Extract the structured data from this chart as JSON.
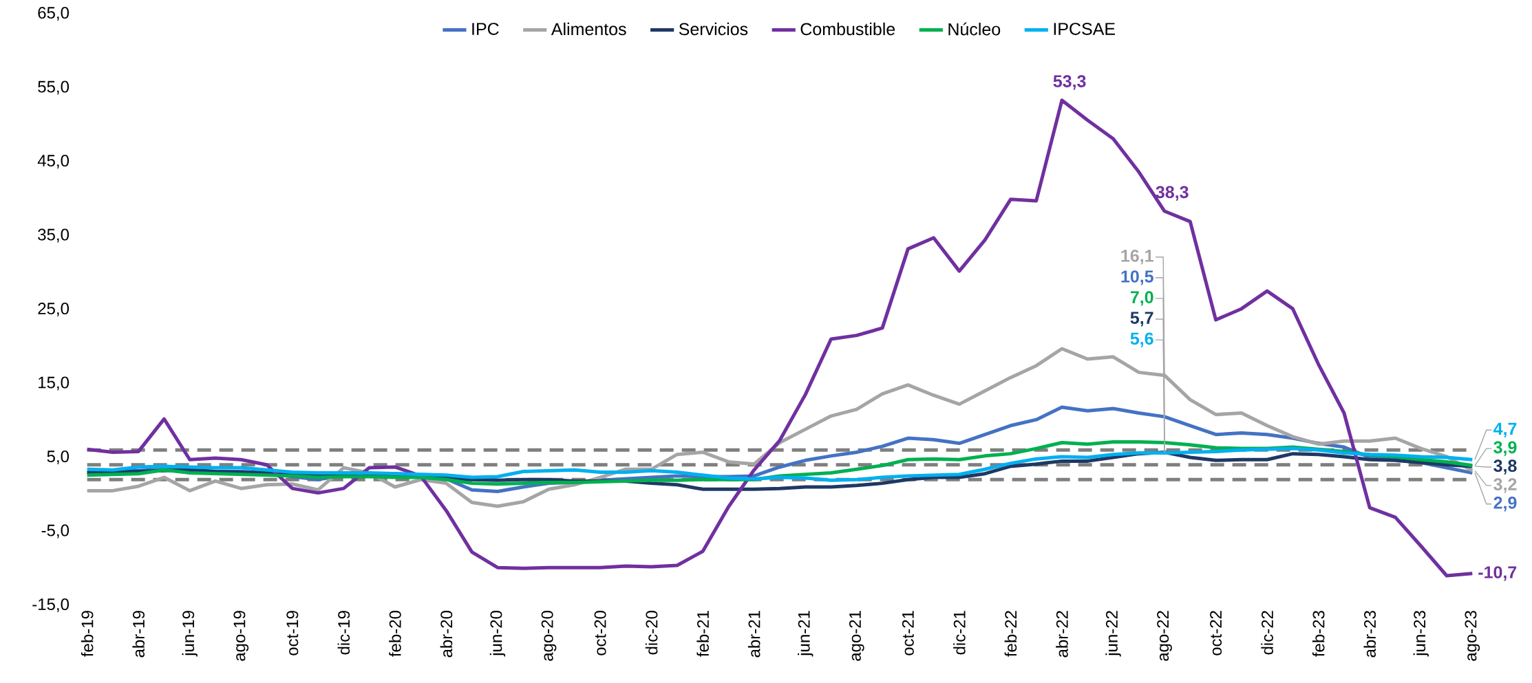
{
  "chart_data": {
    "type": "line",
    "categories": [
      "feb-19",
      null,
      "abr-19",
      null,
      "jun-19",
      null,
      "ago-19",
      null,
      "oct-19",
      null,
      "dic-19",
      null,
      "feb-20",
      null,
      "abr-20",
      null,
      "jun-20",
      null,
      "ago-20",
      null,
      "oct-20",
      null,
      "dic-20",
      null,
      "feb-21",
      null,
      "abr-21",
      null,
      "jun-21",
      null,
      "ago-21",
      null,
      "oct-21",
      null,
      "dic-21",
      null,
      "feb-22",
      null,
      "abr-22",
      null,
      "jun-22",
      null,
      "ago-22",
      null,
      "oct-22",
      null,
      "dic-22",
      null,
      "feb-23",
      null,
      "abr-23",
      null,
      "jun-23",
      null,
      "ago-23"
    ],
    "ylim": [
      -15,
      65
    ],
    "yticks": [
      {
        "value": -15,
        "label": "-15,0"
      },
      {
        "value": -5,
        "label": "-5,0"
      },
      {
        "value": 5,
        "label": "5,0"
      },
      {
        "value": 15,
        "label": "15,0"
      },
      {
        "value": 25,
        "label": "25,0"
      },
      {
        "value": 35,
        "label": "35,0"
      },
      {
        "value": 45,
        "label": "45,0"
      },
      {
        "value": 55,
        "label": "55,0"
      },
      {
        "value": 65,
        "label": "65,0"
      }
    ],
    "legend": "top",
    "ref_lines": [
      {
        "axis": "y",
        "value": 2,
        "color": "#7f7f7f",
        "line_style": "dashed"
      },
      {
        "axis": "y",
        "value": 4,
        "color": "#7f7f7f",
        "line_style": "dashed"
      },
      {
        "axis": "y",
        "value": 6,
        "color": "#7f7f7f",
        "line_style": "dashed"
      }
    ],
    "series": [
      {
        "name": "IPC",
        "color": "#4472c4",
        "values": [
          3.0,
          3.1,
          3.2,
          3.4,
          3.3,
          3.1,
          3.1,
          2.9,
          2.4,
          2.0,
          2.6,
          2.8,
          2.8,
          2.6,
          2.1,
          0.6,
          0.4,
          1.0,
          1.5,
          1.6,
          1.9,
          2.1,
          2.3,
          2.5,
          2.4,
          2.4,
          2.5,
          3.7,
          4.6,
          5.2,
          5.7,
          6.5,
          7.6,
          7.4,
          6.9,
          8.1,
          9.3,
          10.1,
          11.8,
          11.3,
          11.6,
          11.0,
          10.5,
          9.3,
          8.1,
          8.3,
          8.1,
          7.6,
          6.9,
          6.4,
          5.0,
          4.7,
          4.3,
          3.6,
          2.9
        ],
        "value_labels": [
          null,
          null,
          null,
          null,
          null,
          null,
          null,
          null,
          null,
          null,
          null,
          null,
          null,
          null,
          null,
          null,
          null,
          null,
          null,
          null,
          null,
          null,
          null,
          null,
          null,
          null,
          null,
          null,
          null,
          null,
          null,
          null,
          null,
          null,
          null,
          null,
          null,
          null,
          null,
          null,
          null,
          null,
          "10,5",
          null,
          null,
          null,
          null,
          null,
          null,
          null,
          null,
          null,
          null,
          null,
          "2,9"
        ]
      },
      {
        "name": "Alimentos",
        "color": "#a5a5a5",
        "values": [
          0.5,
          0.5,
          1.1,
          2.3,
          0.5,
          1.8,
          0.8,
          1.3,
          1.4,
          0.6,
          3.6,
          2.9,
          1.0,
          2.0,
          1.5,
          -1.1,
          -1.6,
          -1.0,
          0.7,
          1.3,
          2.3,
          3.4,
          3.4,
          5.4,
          5.7,
          4.4,
          4.1,
          7.0,
          8.8,
          10.6,
          11.5,
          13.6,
          14.8,
          13.4,
          12.2,
          14.0,
          15.8,
          17.4,
          19.7,
          18.3,
          18.6,
          16.5,
          16.1,
          12.8,
          10.8,
          11.0,
          9.3,
          7.8,
          6.8,
          7.2,
          7.2,
          7.6,
          6.2,
          5.1,
          3.2
        ],
        "value_labels": [
          null,
          null,
          null,
          null,
          null,
          null,
          null,
          null,
          null,
          null,
          null,
          null,
          null,
          null,
          null,
          null,
          null,
          null,
          null,
          null,
          null,
          null,
          null,
          null,
          null,
          null,
          null,
          null,
          null,
          null,
          null,
          null,
          null,
          null,
          null,
          null,
          null,
          null,
          null,
          null,
          null,
          null,
          "16,1",
          null,
          null,
          null,
          null,
          null,
          null,
          null,
          null,
          null,
          null,
          null,
          "3,2"
        ]
      },
      {
        "name": "Servicios",
        "color": "#1f3864",
        "values": [
          2.9,
          3.0,
          3.1,
          3.2,
          3.3,
          3.1,
          3.0,
          2.9,
          2.7,
          2.5,
          2.6,
          2.6,
          2.5,
          2.4,
          2.2,
          2.0,
          1.9,
          2.0,
          2.0,
          1.8,
          1.8,
          1.8,
          1.5,
          1.3,
          0.7,
          0.7,
          0.7,
          0.8,
          1.0,
          1.0,
          1.2,
          1.5,
          2.0,
          2.3,
          2.3,
          2.8,
          3.8,
          4.1,
          4.5,
          4.5,
          5.0,
          5.5,
          5.7,
          5.0,
          4.6,
          4.7,
          4.7,
          5.5,
          5.4,
          5.1,
          4.7,
          4.6,
          4.3,
          4.0,
          3.8
        ],
        "value_labels": [
          null,
          null,
          null,
          null,
          null,
          null,
          null,
          null,
          null,
          null,
          null,
          null,
          null,
          null,
          null,
          null,
          null,
          null,
          null,
          null,
          null,
          null,
          null,
          null,
          null,
          null,
          null,
          null,
          null,
          null,
          null,
          null,
          null,
          null,
          null,
          null,
          null,
          null,
          null,
          null,
          null,
          null,
          "5,7",
          null,
          null,
          null,
          null,
          null,
          null,
          null,
          null,
          null,
          null,
          null,
          "3,8"
        ]
      },
      {
        "name": "Combustible",
        "color": "#7030a0",
        "values": [
          6.1,
          5.7,
          5.8,
          10.2,
          4.7,
          4.9,
          4.7,
          4.0,
          0.8,
          0.2,
          0.8,
          3.6,
          3.7,
          2.5,
          -2.2,
          -7.8,
          -9.9,
          -10.0,
          -9.9,
          -9.9,
          -9.9,
          -9.7,
          -9.8,
          -9.6,
          -7.7,
          -1.7,
          3.3,
          7.3,
          13.5,
          21.0,
          21.5,
          22.5,
          33.2,
          34.7,
          30.2,
          34.4,
          39.9,
          39.7,
          53.3,
          50.6,
          48.1,
          43.6,
          38.3,
          36.9,
          23.6,
          25.1,
          27.5,
          25.1,
          17.6,
          11.0,
          -1.8,
          -3.1,
          -7.0,
          -11.0,
          -10.7
        ],
        "value_labels": [
          null,
          null,
          null,
          null,
          null,
          null,
          null,
          null,
          null,
          null,
          null,
          null,
          null,
          null,
          null,
          null,
          null,
          null,
          null,
          null,
          null,
          null,
          null,
          null,
          null,
          null,
          null,
          null,
          null,
          null,
          null,
          null,
          null,
          null,
          null,
          null,
          null,
          null,
          "53,3",
          null,
          null,
          null,
          "38,3",
          null,
          null,
          null,
          null,
          null,
          null,
          null,
          null,
          null,
          null,
          null,
          "-10,7"
        ]
      },
      {
        "name": "Núcleo",
        "color": "#00b050",
        "values": [
          2.6,
          2.7,
          2.8,
          3.3,
          2.9,
          2.8,
          2.7,
          2.6,
          2.5,
          2.3,
          2.4,
          2.4,
          2.3,
          2.3,
          2.0,
          1.5,
          1.4,
          1.5,
          1.6,
          1.6,
          1.7,
          1.8,
          1.9,
          1.9,
          2.0,
          2.0,
          2.0,
          2.5,
          2.7,
          2.9,
          3.4,
          3.9,
          4.7,
          4.8,
          4.7,
          5.2,
          5.5,
          6.2,
          7.0,
          6.8,
          7.1,
          7.1,
          7.0,
          6.7,
          6.3,
          6.2,
          6.2,
          6.4,
          6.1,
          5.8,
          5.3,
          5.1,
          4.7,
          4.4,
          3.9
        ],
        "value_labels": [
          null,
          null,
          null,
          null,
          null,
          null,
          null,
          null,
          null,
          null,
          null,
          null,
          null,
          null,
          null,
          null,
          null,
          null,
          null,
          null,
          null,
          null,
          null,
          null,
          null,
          null,
          null,
          null,
          null,
          null,
          null,
          null,
          null,
          null,
          null,
          null,
          null,
          null,
          null,
          null,
          null,
          null,
          "7,0",
          null,
          null,
          null,
          null,
          null,
          null,
          null,
          null,
          null,
          null,
          null,
          "3,9"
        ]
      },
      {
        "name": "IPCSAE",
        "color": "#00b0f0",
        "values": [
          3.4,
          3.3,
          3.7,
          3.8,
          3.7,
          3.6,
          3.6,
          3.3,
          3.0,
          2.9,
          2.9,
          2.9,
          2.8,
          2.7,
          2.6,
          2.3,
          2.4,
          3.1,
          3.2,
          3.3,
          3.0,
          3.0,
          3.2,
          3.0,
          2.6,
          2.2,
          2.1,
          2.3,
          2.2,
          1.9,
          2.0,
          2.3,
          2.5,
          2.6,
          2.7,
          3.4,
          4.2,
          4.8,
          5.1,
          5.0,
          5.4,
          5.6,
          5.6,
          5.7,
          5.8,
          6.0,
          6.1,
          6.2,
          6.0,
          5.6,
          5.4,
          5.3,
          5.1,
          5.0,
          4.7
        ],
        "value_labels": [
          null,
          null,
          null,
          null,
          null,
          null,
          null,
          null,
          null,
          null,
          null,
          null,
          null,
          null,
          null,
          null,
          null,
          null,
          null,
          null,
          null,
          null,
          null,
          null,
          null,
          null,
          null,
          null,
          null,
          null,
          null,
          null,
          null,
          null,
          null,
          null,
          null,
          null,
          null,
          null,
          null,
          null,
          "5,6",
          null,
          null,
          null,
          null,
          null,
          null,
          null,
          null,
          null,
          null,
          null,
          "4,7"
        ]
      }
    ]
  }
}
